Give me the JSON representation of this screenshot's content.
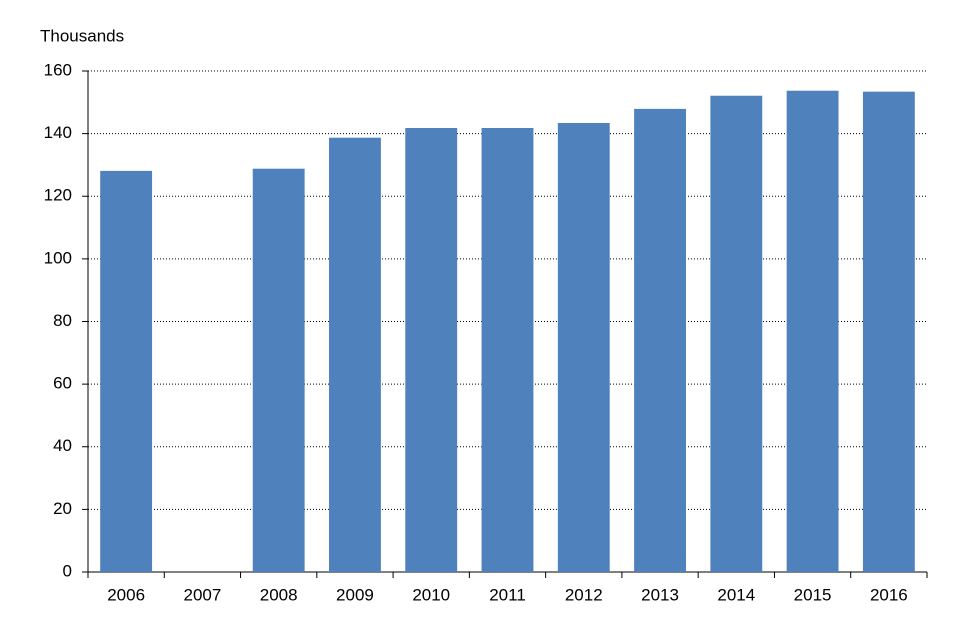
{
  "chart_data": {
    "type": "bar",
    "y_label": "Thousands",
    "categories": [
      "2006",
      "2007",
      "2008",
      "2009",
      "2010",
      "2011",
      "2012",
      "2013",
      "2014",
      "2015",
      "2016"
    ],
    "values": [
      128.1,
      null,
      128.8,
      138.7,
      141.8,
      141.8,
      143.4,
      147.9,
      152.1,
      153.7,
      153.4
    ],
    "color": "#4f81bd",
    "ylim": [
      0,
      160
    ],
    "yticks": [
      0,
      20,
      40,
      60,
      80,
      100,
      120,
      140,
      160
    ],
    "grid": true
  }
}
